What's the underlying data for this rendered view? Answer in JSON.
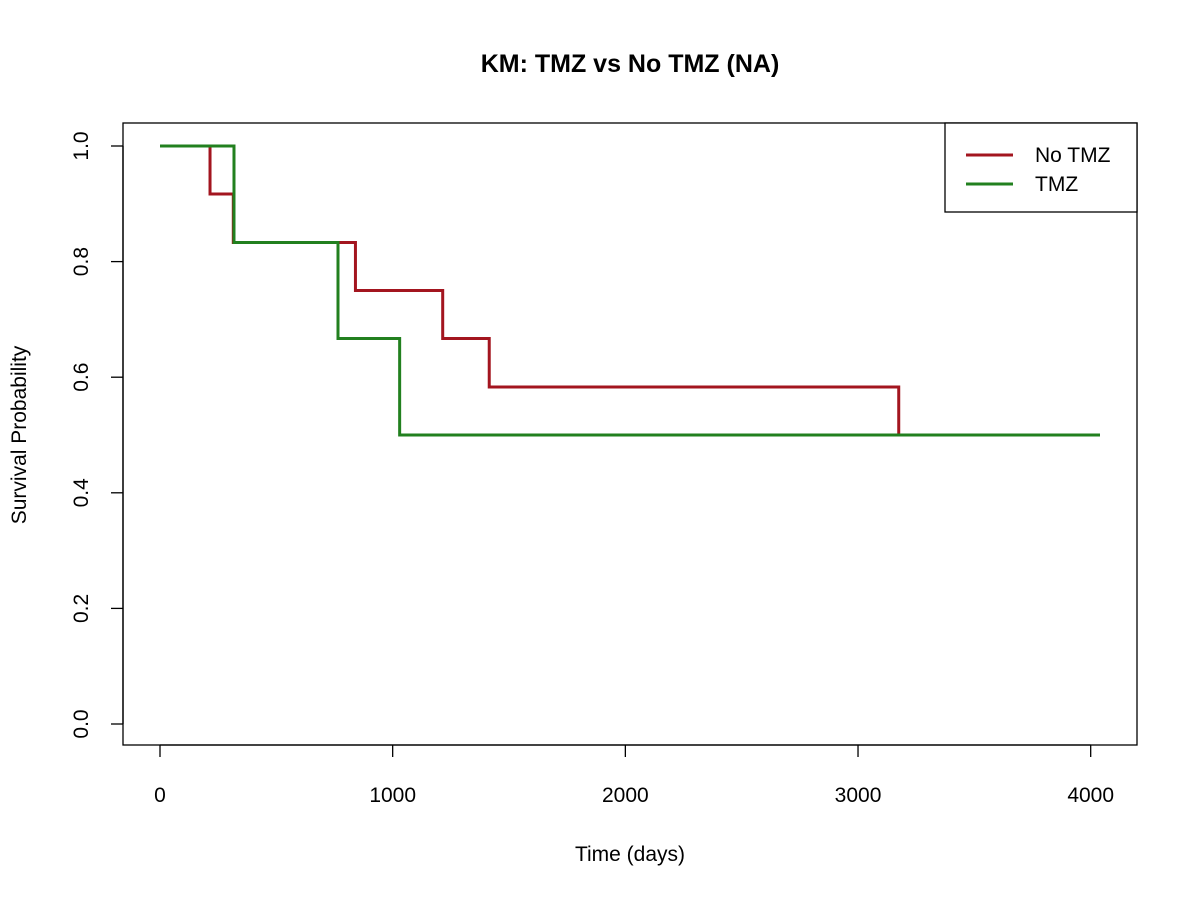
{
  "chart_data": {
    "type": "line",
    "step": true,
    "title": "KM: TMZ vs No TMZ (NA)",
    "xlabel": "Time (days)",
    "ylabel": "Survival Probability",
    "xlim": [
      0,
      4040
    ],
    "ylim": [
      0,
      1
    ],
    "x_ticks": [
      0,
      1000,
      2000,
      3000,
      4000
    ],
    "x_tick_labels": [
      "0",
      "1000",
      "2000",
      "3000",
      "4000"
    ],
    "y_ticks": [
      0,
      0.2,
      0.4,
      0.6,
      0.8,
      1.0
    ],
    "y_tick_labels": [
      "0.0",
      "0.2",
      "0.4",
      "0.6",
      "0.8",
      "1.0"
    ],
    "grid": false,
    "legend_position": "top-right",
    "series": [
      {
        "name": "No TMZ",
        "color": "#a3151f",
        "x": [
          0,
          215,
          315,
          840,
          1215,
          1415,
          3175,
          4040
        ],
        "y": [
          1.0,
          0.917,
          0.833,
          0.75,
          0.667,
          0.583,
          0.5,
          0.5
        ]
      },
      {
        "name": "TMZ",
        "color": "#22801f",
        "x": [
          0,
          318,
          765,
          1030,
          4040
        ],
        "y": [
          1.0,
          0.833,
          0.667,
          0.5,
          0.5
        ]
      }
    ]
  }
}
